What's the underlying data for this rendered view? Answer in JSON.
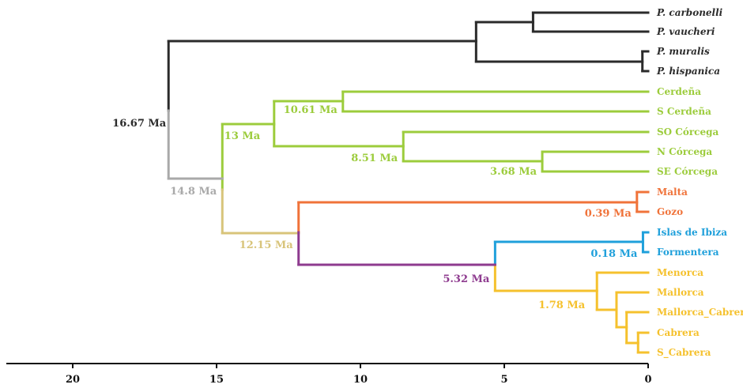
{
  "colors": {
    "outgroup": "#2b2b2b",
    "corsica_sardinia": "#9ccc3c",
    "malta": "#f0733a",
    "ibiza": "#1fa0db",
    "balearic": "#f5c12d",
    "root_grey": "#a9a9a9",
    "tan": "#d8c47a",
    "purple": "#8e3b8f",
    "axis": "#111111"
  },
  "tips": [
    {
      "label": "P. carbonelli",
      "color": "outgroup",
      "italic": true
    },
    {
      "label": "P. vaucheri",
      "color": "outgroup",
      "italic": true
    },
    {
      "label": "P. muralis",
      "color": "outgroup",
      "italic": true
    },
    {
      "label": "P. hispanica",
      "color": "outgroup",
      "italic": true
    },
    {
      "label": "Cerdeña",
      "color": "corsica_sardinia",
      "italic": false
    },
    {
      "label": "S Cerdeña",
      "color": "corsica_sardinia",
      "italic": false
    },
    {
      "label": "SO Córcega",
      "color": "corsica_sardinia",
      "italic": false
    },
    {
      "label": "N Córcega",
      "color": "corsica_sardinia",
      "italic": false
    },
    {
      "label": "SE Córcega",
      "color": "corsica_sardinia",
      "italic": false
    },
    {
      "label": "Malta",
      "color": "malta",
      "italic": false
    },
    {
      "label": "Gozo",
      "color": "malta",
      "italic": false
    },
    {
      "label": "Islas de Ibiza",
      "color": "ibiza",
      "italic": false
    },
    {
      "label": "Formentera",
      "color": "ibiza",
      "italic": false
    },
    {
      "label": "Menorca",
      "color": "balearic",
      "italic": false
    },
    {
      "label": "Mallorca",
      "color": "balearic",
      "italic": false
    },
    {
      "label": "Mallorca_Cabrera",
      "color": "balearic",
      "italic": false
    },
    {
      "label": "Cabrera",
      "color": "balearic",
      "italic": false
    },
    {
      "label": "S_Cabrera",
      "color": "balearic",
      "italic": false
    }
  ],
  "node_labels": [
    {
      "text": "16.67 Ma",
      "color": "outgroup"
    },
    {
      "text": "14.8 Ma",
      "color": "root_grey"
    },
    {
      "text": "13 Ma",
      "color": "corsica_sardinia"
    },
    {
      "text": "10.61 Ma",
      "color": "corsica_sardinia"
    },
    {
      "text": "8.51 Ma",
      "color": "corsica_sardinia"
    },
    {
      "text": "3.68 Ma",
      "color": "corsica_sardinia"
    },
    {
      "text": "12.15 Ma",
      "color": "tan"
    },
    {
      "text": "0.39 Ma",
      "color": "malta"
    },
    {
      "text": "0.18 Ma",
      "color": "ibiza"
    },
    {
      "text": "5.32 Ma",
      "color": "purple"
    },
    {
      "text": "1.78 Ma",
      "color": "balearic"
    }
  ],
  "axis": {
    "unit": "Ma",
    "ticks": [
      20,
      15,
      10,
      5,
      0
    ],
    "range": [
      22.3,
      0
    ]
  }
}
